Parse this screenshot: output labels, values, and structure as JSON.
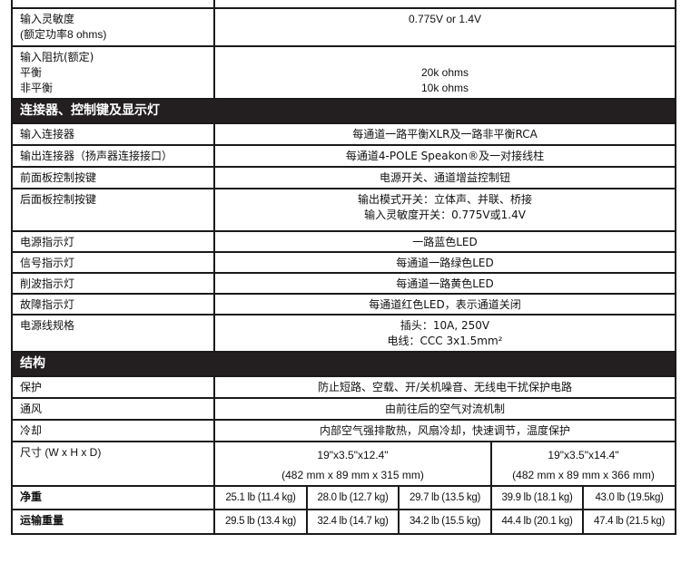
{
  "rows_top": [
    {
      "label_lines": [
        "输入灵敏度",
        "(额定功率8 ohms)"
      ],
      "value_lines": [
        "0.775V or 1.4V"
      ]
    },
    {
      "label_lines": [
        "输入阻抗(额定)",
        "平衡",
        "非平衡"
      ],
      "value_lines": [
        "20k ohms",
        "10k ohms"
      ]
    }
  ],
  "section_connectors": {
    "title": "连接器、控制键及显示灯",
    "rows": [
      {
        "label": "输入连接器",
        "value_lines": [
          "每通道一路平衡XLR及一路非平衡RCA"
        ]
      },
      {
        "label": "输出连接器（扬声器连接接口）",
        "value_lines": [
          "每通道4-POLE Speakon®及一对接线柱"
        ]
      },
      {
        "label": "前面板控制按键",
        "value_lines": [
          "电源开关、通道增益控制钮"
        ]
      },
      {
        "label": "后面板控制按键",
        "value_lines": [
          "输出模式开关：立体声、并联、桥接",
          "输入灵敏度开关：0.775V或1.4V"
        ]
      },
      {
        "label": "电源指示灯",
        "value_lines": [
          "一路蓝色LED"
        ]
      },
      {
        "label": "信号指示灯",
        "value_lines": [
          "每通道一路绿色LED"
        ]
      },
      {
        "label": "削波指示灯",
        "value_lines": [
          "每通道一路黄色LED"
        ]
      },
      {
        "label": "故障指示灯",
        "value_lines": [
          "每通道红色LED，表示通道关闭"
        ]
      },
      {
        "label": "电源线规格",
        "value_lines": [
          "插头：10A, 250V",
          "电线：CCC 3x1.5mm²"
        ]
      }
    ]
  },
  "section_structure": {
    "title": "结构",
    "rows": [
      {
        "label": "保护",
        "value": "防止短路、空载、开/关机噪音、无线电干扰保护电路"
      },
      {
        "label": "通风",
        "value": "由前往后的空气对流机制"
      },
      {
        "label": "冷却",
        "value": "内部空气强排散热，风扇冷却，快速调节，温度保护"
      }
    ],
    "dimensions": {
      "label": "尺寸 (W x H x D)",
      "groups": [
        {
          "inch": "19\"x3.5\"x12.4\"",
          "mm": "(482 mm x 89 mm x 315 mm)"
        },
        {
          "inch": "19\"x3.5\"x14.4\"",
          "mm": "(482 mm x 89 mm x 366 mm)"
        }
      ]
    },
    "net_weight": {
      "label": "净重",
      "values": [
        "25.1 lb (11.4 kg)",
        "28.0 lb (12.7 kg)",
        "29.7 lb (13.5 kg)",
        "39.9 lb (18.1 kg)",
        "43.0 lb (19.5kg)"
      ]
    },
    "shipping_weight": {
      "label": "运输重量",
      "values": [
        "29.5 lb (13.4 kg)",
        "32.4 lb (14.7 kg)",
        "34.2 lb (15.5 kg)",
        "44.4 lb (20.1 kg)",
        "47.4 lb (21.5 kg)"
      ]
    }
  }
}
